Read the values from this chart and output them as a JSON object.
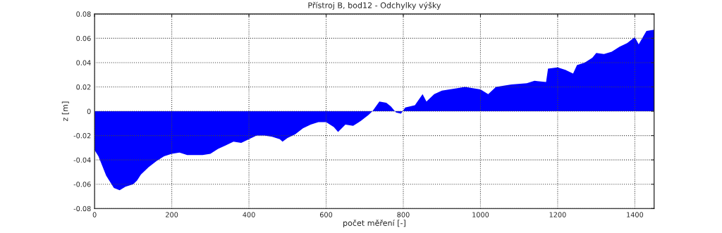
{
  "chart_data": {
    "type": "area",
    "title": "Přístroj B, bod12 - Odchylky výšky",
    "xlabel": "počet měření [-]",
    "ylabel": "z [m]",
    "x": [
      0,
      10,
      20,
      30,
      40,
      50,
      65,
      80,
      100,
      110,
      120,
      140,
      160,
      180,
      200,
      220,
      240,
      260,
      280,
      300,
      320,
      340,
      360,
      380,
      400,
      420,
      440,
      460,
      480,
      487,
      500,
      520,
      540,
      560,
      580,
      600,
      620,
      631,
      650,
      670,
      690,
      710,
      720,
      738,
      756,
      768,
      781,
      794,
      805,
      830,
      850,
      860,
      880,
      900,
      940,
      960,
      1000,
      1020,
      1040,
      1080,
      1120,
      1140,
      1170,
      1175,
      1200,
      1220,
      1240,
      1250,
      1270,
      1290,
      1300,
      1320,
      1340,
      1360,
      1380,
      1400,
      1410,
      1430,
      1450
    ],
    "series": [
      {
        "color": "#0000ff",
        "values": [
          -0.032,
          -0.037,
          -0.045,
          -0.053,
          -0.058,
          -0.063,
          -0.065,
          -0.062,
          -0.06,
          -0.057,
          -0.052,
          -0.046,
          -0.041,
          -0.037,
          -0.035,
          -0.034,
          -0.036,
          -0.036,
          -0.036,
          -0.035,
          -0.031,
          -0.028,
          -0.025,
          -0.026,
          -0.023,
          -0.02,
          -0.02,
          -0.021,
          -0.023,
          -0.025,
          -0.022,
          -0.019,
          -0.014,
          -0.011,
          -0.009,
          -0.009,
          -0.013,
          -0.017,
          -0.011,
          -0.012,
          -0.008,
          -0.003,
          0.0,
          0.008,
          0.007,
          0.004,
          -0.001,
          -0.002,
          0.003,
          0.005,
          0.014,
          0.008,
          0.014,
          0.017,
          0.019,
          0.02,
          0.018,
          0.014,
          0.02,
          0.022,
          0.023,
          0.025,
          0.024,
          0.035,
          0.036,
          0.034,
          0.031,
          0.038,
          0.04,
          0.044,
          0.048,
          0.047,
          0.049,
          0.053,
          0.056,
          0.061,
          0.055,
          0.066,
          0.067
        ]
      }
    ],
    "xlim": [
      0,
      1450
    ],
    "xticks": [
      0,
      200,
      400,
      600,
      800,
      1000,
      1200,
      1400
    ],
    "ylim": [
      -0.08,
      0.08
    ],
    "yticks": [
      -0.08,
      -0.06,
      -0.04,
      -0.02,
      0,
      0.02,
      0.04,
      0.06,
      0.08
    ],
    "grid": true
  }
}
